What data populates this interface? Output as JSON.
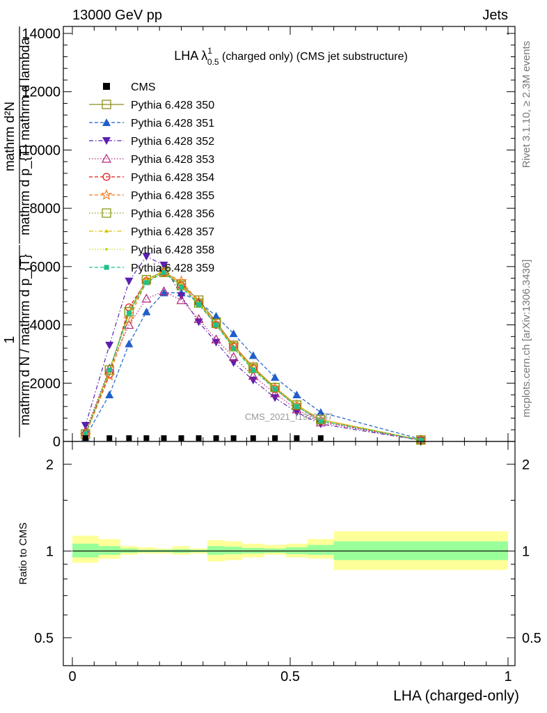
{
  "header": {
    "left": "13000 GeV pp",
    "right": "Jets"
  },
  "side_labels": {
    "rivet": "Rivet 3.1.10, ≥ 2.3M events",
    "mcplots": "mcplots.cern.ch [arXiv:1306.3436]"
  },
  "watermark": "CMS_2021_I1920187",
  "chart_data": [
    {
      "type": "line",
      "title_main": "LHA λ",
      "title_sup": "1",
      "title_sub": "0.5",
      "title_rest": " (charged only) (CMS jet substructure)",
      "ylabel": {
        "numerator": "1",
        "denominator": "mathrm d N / mathrm d p_{T}",
        "numerator2": "mathrm d²N",
        "denominator2": "mathrm d p_{T} mathrm d lambda"
      },
      "xlim": [
        0,
        1
      ],
      "ylim": [
        0,
        14000
      ],
      "yticks": [
        "0",
        "2000",
        "4000",
        "6000",
        "8000",
        "10000",
        "12000",
        "14000"
      ],
      "yticks_values": [
        0,
        2000,
        4000,
        6000,
        8000,
        10000,
        12000,
        14000
      ],
      "x": [
        0.03,
        0.085,
        0.13,
        0.17,
        0.21,
        0.25,
        0.29,
        0.33,
        0.37,
        0.415,
        0.465,
        0.515,
        0.57,
        0.8
      ],
      "data": {
        "name": "CMS",
        "x": [
          0.03,
          0.085,
          0.13,
          0.17,
          0.21,
          0.25,
          0.29,
          0.33,
          0.37,
          0.415,
          0.465,
          0.515,
          0.57
        ],
        "values": [
          20,
          20,
          20,
          20,
          20,
          20,
          20,
          20,
          20,
          20,
          20,
          20,
          20
        ]
      },
      "series": [
        {
          "name": "Pythia 6.428 350",
          "color": "#8c8c1a",
          "marker": "square-open",
          "dash": "solid",
          "values": [
            250,
            2450,
            4450,
            5550,
            5850,
            5400,
            4850,
            4100,
            3300,
            2550,
            1850,
            1250,
            750,
            50
          ]
        },
        {
          "name": "Pythia 6.428 351",
          "color": "#1f5fc8",
          "marker": "triangle-up-filled",
          "dash": "dashed",
          "values": [
            150,
            1600,
            3350,
            4450,
            5100,
            5100,
            4800,
            4300,
            3700,
            2950,
            2200,
            1600,
            1000,
            80
          ]
        },
        {
          "name": "Pythia 6.428 352",
          "color": "#5a1fb0",
          "marker": "triangle-down-filled",
          "dash": "dashdot",
          "values": [
            550,
            3300,
            5500,
            6350,
            6050,
            5000,
            4100,
            3400,
            2700,
            2100,
            1500,
            1000,
            600,
            40
          ]
        },
        {
          "name": "Pythia 6.428 353",
          "color": "#b0207a",
          "marker": "triangle-up-open",
          "dash": "dotted",
          "values": [
            350,
            2500,
            4000,
            4900,
            5150,
            4850,
            4200,
            3500,
            2900,
            2250,
            1650,
            1100,
            650,
            40
          ]
        },
        {
          "name": "Pythia 6.428 354",
          "color": "#e01a1a",
          "marker": "circle-open",
          "dash": "dashed",
          "values": [
            250,
            2300,
            4600,
            5500,
            5800,
            5350,
            4750,
            4000,
            3250,
            2500,
            1800,
            1200,
            700,
            50
          ]
        },
        {
          "name": "Pythia 6.428 355",
          "color": "#f07a1a",
          "marker": "star-open",
          "dash": "dashed",
          "values": [
            220,
            2250,
            4200,
            5500,
            5800,
            5500,
            4800,
            4050,
            3300,
            2550,
            1850,
            1250,
            750,
            50
          ]
        },
        {
          "name": "Pythia 6.428 356",
          "color": "#8a9a10",
          "marker": "square-open",
          "dash": "dotted",
          "values": [
            260,
            2450,
            4450,
            5550,
            5800,
            5350,
            4750,
            4050,
            3250,
            2500,
            1850,
            1250,
            750,
            50
          ]
        },
        {
          "name": "Pythia 6.428 357",
          "color": "#d8c000",
          "marker": "tri-small",
          "dash": "dashdot",
          "values": [
            240,
            2450,
            4400,
            5550,
            5850,
            5400,
            4750,
            4000,
            3250,
            2500,
            1800,
            1250,
            750,
            50
          ]
        },
        {
          "name": "Pythia 6.428 358",
          "color": "#b8e020",
          "marker": "dot-small",
          "dash": "dotted",
          "values": [
            250,
            2400,
            4350,
            5500,
            5800,
            5350,
            4750,
            4000,
            3200,
            2500,
            1800,
            1250,
            750,
            50
          ]
        },
        {
          "name": "Pythia 6.428 359",
          "color": "#1fc08a",
          "marker": "square-filled",
          "dash": "dashed",
          "values": [
            260,
            2450,
            4400,
            5450,
            5800,
            5300,
            4700,
            4000,
            3200,
            2450,
            1800,
            1200,
            700,
            45
          ]
        }
      ]
    },
    {
      "type": "area",
      "ylabel": "Ratio to CMS",
      "xlabel": "LHA (charged-only)",
      "xlim": [
        0,
        1
      ],
      "ylim": [
        0.4,
        2.4
      ],
      "log_y": true,
      "xticks": [
        "0",
        "0.5",
        "1"
      ],
      "xticks_values": [
        0,
        0.5,
        1
      ],
      "yticks": [
        "0.5",
        "1",
        "2"
      ],
      "yticks_values": [
        0.5,
        1,
        2
      ],
      "bins": [
        0,
        0.06,
        0.11,
        0.15,
        0.19,
        0.23,
        0.27,
        0.31,
        0.35,
        0.39,
        0.44,
        0.49,
        0.54,
        0.6,
        1.0
      ],
      "stat_band": [
        [
          0.95,
          1.06
        ],
        [
          0.97,
          1.04
        ],
        [
          0.985,
          1.02
        ],
        [
          0.99,
          1.01
        ],
        [
          0.99,
          1.01
        ],
        [
          0.985,
          1.015
        ],
        [
          0.99,
          1.01
        ],
        [
          0.97,
          1.04
        ],
        [
          0.975,
          1.035
        ],
        [
          0.98,
          1.025
        ],
        [
          0.985,
          1.02
        ],
        [
          0.975,
          1.03
        ],
        [
          0.97,
          1.05
        ],
        [
          0.93,
          1.08
        ]
      ],
      "syst_band": [
        [
          0.91,
          1.13
        ],
        [
          0.94,
          1.1
        ],
        [
          0.97,
          1.04
        ],
        [
          0.98,
          1.03
        ],
        [
          0.98,
          1.02
        ],
        [
          0.97,
          1.04
        ],
        [
          0.98,
          1.02
        ],
        [
          0.92,
          1.09
        ],
        [
          0.93,
          1.08
        ],
        [
          0.95,
          1.06
        ],
        [
          0.97,
          1.05
        ],
        [
          0.95,
          1.06
        ],
        [
          0.94,
          1.1
        ],
        [
          0.86,
          1.17
        ]
      ],
      "ref_line": 1,
      "colors": {
        "stat": "#99ff99",
        "syst": "#ffff99"
      }
    }
  ]
}
